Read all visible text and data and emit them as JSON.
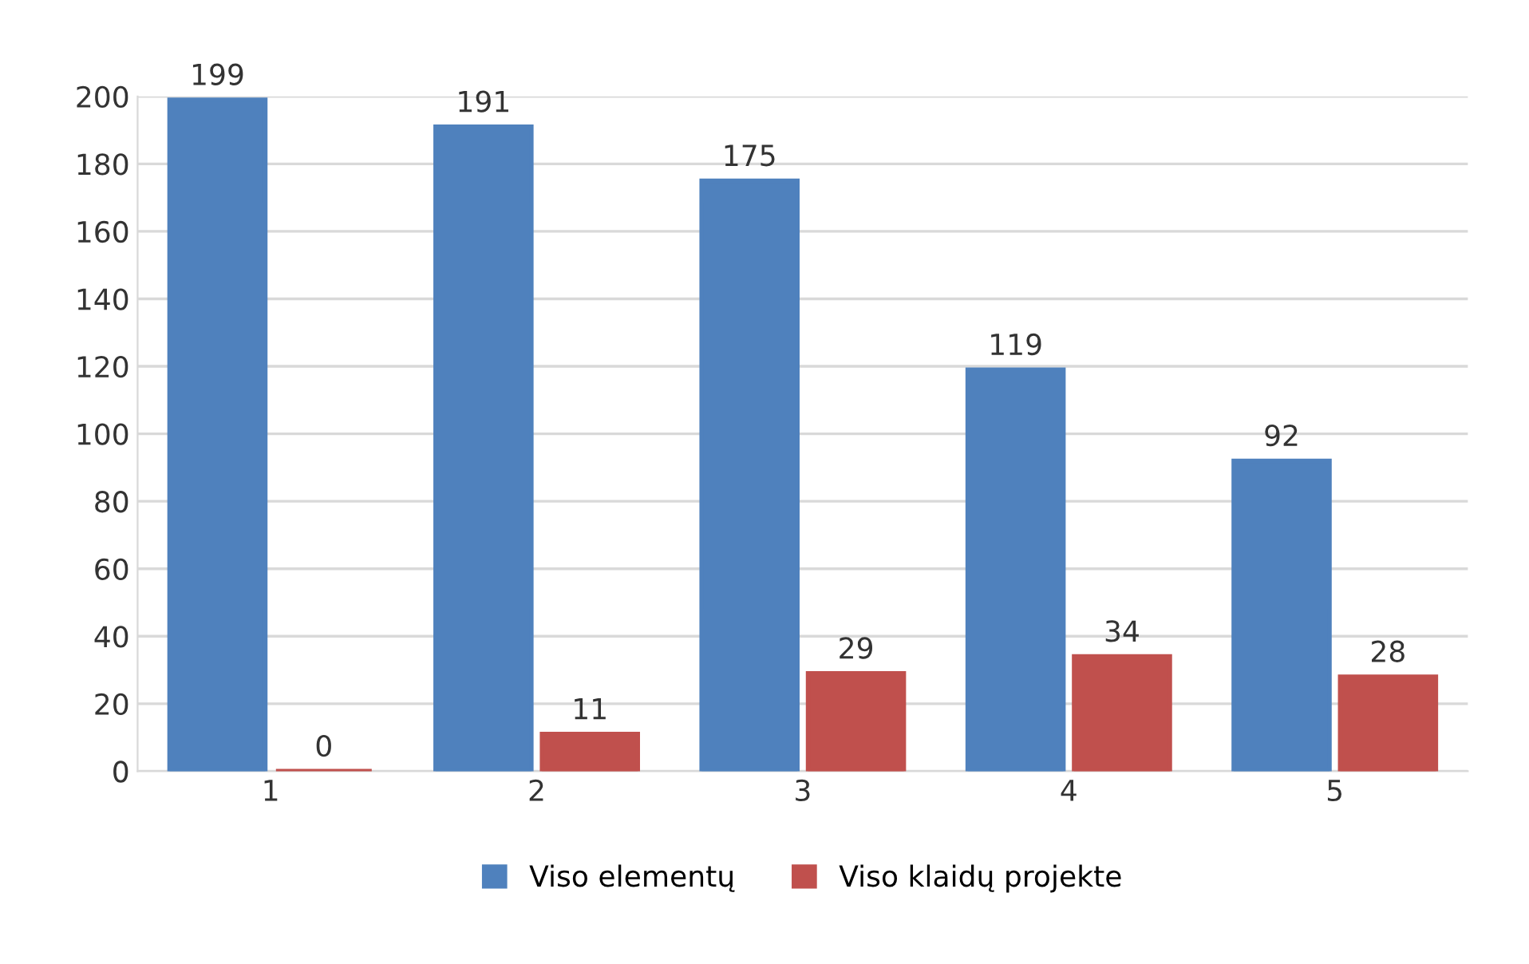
{
  "chart_data": {
    "type": "bar",
    "categories": [
      "1",
      "2",
      "3",
      "4",
      "5"
    ],
    "series": [
      {
        "name": "Viso elementų",
        "color": "#4f81bd",
        "values": [
          199,
          191,
          175,
          119,
          92
        ]
      },
      {
        "name": "Viso klaidų projekte",
        "color": "#c0504d",
        "values": [
          0,
          11,
          29,
          34,
          28
        ]
      }
    ],
    "ylim": [
      0,
      200
    ],
    "yticks": [
      0,
      20,
      40,
      60,
      80,
      100,
      120,
      140,
      160,
      180,
      200
    ],
    "grid": "y",
    "legend": "bottom",
    "data_labels": true
  }
}
